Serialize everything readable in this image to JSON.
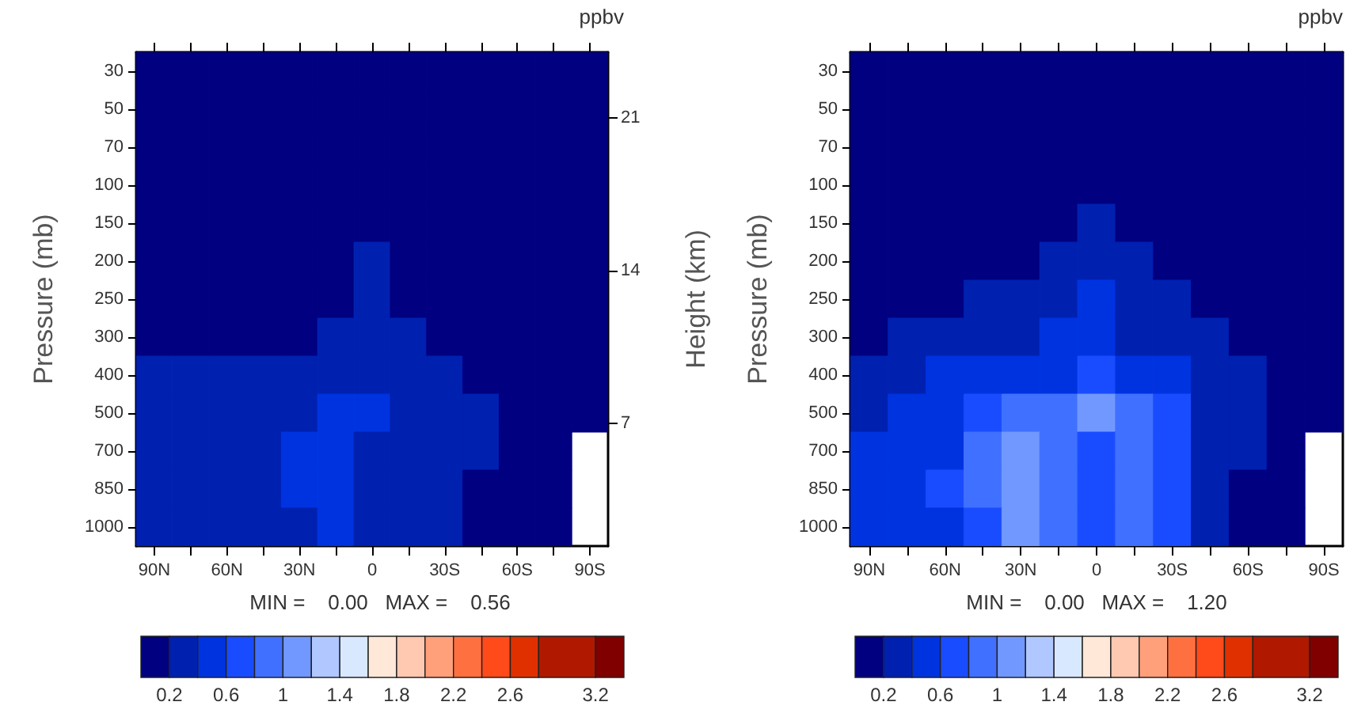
{
  "chart_data": [
    {
      "type": "heatmap",
      "ylabel": "Pressure (mb)",
      "y2label": "Height (km)",
      "clabel": "ppbv",
      "annotations": [
        "MIN =    0.00   MAX =    0.56"
      ],
      "categories": [
        "90N",
        null,
        "60N",
        null,
        "30N",
        null,
        "0",
        null,
        "30S",
        null,
        "60S",
        null,
        "90S"
      ],
      "y_categories": [
        "30",
        "50",
        "70",
        "100",
        "150",
        "200",
        "250",
        "300",
        "400",
        "500",
        "700",
        "850",
        "1000"
      ],
      "clim": [
        0,
        3.4
      ],
      "y2lim": [
        1.4,
        24
      ],
      "y2ticks": [
        7,
        14,
        21
      ],
      "colors": [
        "#000080",
        "#0020b0",
        "#0033e0",
        "#1a4cff",
        "#4070ff",
        "#7098ff",
        "#b0c8ff",
        "#d8e8ff",
        "#ffe8d8",
        "#ffc8b0",
        "#ffa07a",
        "#ff7040",
        "#ff4a1a",
        "#e03000",
        "#b01800",
        "#800000"
      ],
      "cticks": [
        0.2,
        {
          "value": 0.4,
          "label": null
        },
        0.6,
        {
          "value": 0.8,
          "label": null
        },
        1,
        {
          "value": 1.2,
          "label": null
        },
        1.4,
        {
          "value": 1.6,
          "label": null
        },
        1.8,
        {
          "value": 2,
          "label": null
        },
        2.2,
        {
          "value": 2.4,
          "label": null
        },
        2.6,
        {
          "value": 2.8,
          "label": null
        },
        3.2
      ],
      "cells": [
        [
          0.1,
          0.1,
          0.1,
          0.1,
          0.1,
          0.1,
          0.1,
          0.1,
          0.1,
          0.1,
          0.1,
          0.1,
          0.1
        ],
        [
          0.1,
          0.1,
          0.1,
          0.1,
          0.1,
          0.1,
          0.1,
          0.1,
          0.1,
          0.1,
          0.1,
          0.1,
          0.1
        ],
        [
          0.1,
          0.1,
          0.1,
          0.1,
          0.1,
          0.1,
          0.1,
          0.1,
          0.1,
          0.1,
          0.1,
          0.1,
          0.1
        ],
        [
          0.1,
          0.1,
          0.1,
          0.1,
          0.1,
          0.1,
          0.1,
          0.1,
          0.1,
          0.1,
          0.1,
          0.1,
          0.1
        ],
        [
          0.1,
          0.1,
          0.1,
          0.1,
          0.1,
          0.1,
          0.1,
          0.1,
          0.1,
          0.1,
          0.1,
          0.1,
          0.1
        ],
        [
          0.1,
          0.1,
          0.1,
          0.1,
          0.1,
          0.1,
          0.3,
          0.1,
          0.1,
          0.1,
          0.1,
          0.1,
          0.1
        ],
        [
          0.1,
          0.1,
          0.1,
          0.1,
          0.1,
          0.1,
          0.3,
          0.1,
          0.1,
          0.1,
          0.1,
          0.1,
          0.1
        ],
        [
          0.1,
          0.1,
          0.1,
          0.1,
          0.1,
          0.3,
          0.3,
          0.3,
          0.1,
          0.1,
          0.1,
          0.1,
          0.1
        ],
        [
          0.3,
          0.3,
          0.3,
          0.3,
          0.3,
          0.3,
          0.3,
          0.3,
          0.3,
          0.1,
          0.1,
          0.1,
          0.1
        ],
        [
          0.3,
          0.3,
          0.3,
          0.3,
          0.3,
          0.5,
          0.5,
          0.3,
          0.3,
          0.3,
          0.1,
          0.1,
          0.1
        ],
        [
          0.3,
          0.3,
          0.3,
          0.3,
          0.5,
          0.5,
          0.3,
          0.3,
          0.3,
          0.3,
          0.1,
          0.1,
          null
        ],
        [
          0.3,
          0.3,
          0.3,
          0.3,
          0.5,
          0.5,
          0.3,
          0.3,
          0.3,
          0.1,
          0.1,
          0.1,
          null
        ],
        [
          0.3,
          0.3,
          0.3,
          0.3,
          0.3,
          0.5,
          0.3,
          0.3,
          0.3,
          0.1,
          0.1,
          0.1,
          null
        ]
      ]
    },
    {
      "type": "heatmap",
      "ylabel": "Pressure (mb)",
      "clabel": "ppbv",
      "annotations": [
        "MIN =    0.00   MAX =    1.20"
      ],
      "categories": [
        "90N",
        null,
        "60N",
        null,
        "30N",
        null,
        "0",
        null,
        "30S",
        null,
        "60S",
        null,
        "90S"
      ],
      "y_categories": [
        "30",
        "50",
        "70",
        "100",
        "150",
        "200",
        "250",
        "300",
        "400",
        "500",
        "700",
        "850",
        "1000"
      ],
      "clim": [
        0,
        3.4
      ],
      "colors": [
        "#000080",
        "#0020b0",
        "#0033e0",
        "#1a4cff",
        "#4070ff",
        "#7098ff",
        "#b0c8ff",
        "#d8e8ff",
        "#ffe8d8",
        "#ffc8b0",
        "#ffa07a",
        "#ff7040",
        "#ff4a1a",
        "#e03000",
        "#b01800",
        "#800000"
      ],
      "cticks": [
        0.2,
        {
          "value": 0.4,
          "label": null
        },
        0.6,
        {
          "value": 0.8,
          "label": null
        },
        1,
        {
          "value": 1.2,
          "label": null
        },
        1.4,
        {
          "value": 1.6,
          "label": null
        },
        1.8,
        {
          "value": 2,
          "label": null
        },
        2.2,
        {
          "value": 2.4,
          "label": null
        },
        2.6,
        {
          "value": 2.8,
          "label": null
        },
        3.2
      ],
      "cells": [
        [
          0.1,
          0.1,
          0.1,
          0.1,
          0.1,
          0.1,
          0.1,
          0.1,
          0.1,
          0.1,
          0.1,
          0.1,
          0.1
        ],
        [
          0.1,
          0.1,
          0.1,
          0.1,
          0.1,
          0.1,
          0.1,
          0.1,
          0.1,
          0.1,
          0.1,
          0.1,
          0.1
        ],
        [
          0.1,
          0.1,
          0.1,
          0.1,
          0.1,
          0.1,
          0.1,
          0.1,
          0.1,
          0.1,
          0.1,
          0.1,
          0.1
        ],
        [
          0.1,
          0.1,
          0.1,
          0.1,
          0.1,
          0.1,
          0.1,
          0.1,
          0.1,
          0.1,
          0.1,
          0.1,
          0.1
        ],
        [
          0.1,
          0.1,
          0.1,
          0.1,
          0.1,
          0.1,
          0.3,
          0.1,
          0.1,
          0.1,
          0.1,
          0.1,
          0.1
        ],
        [
          0.1,
          0.1,
          0.1,
          0.1,
          0.1,
          0.3,
          0.3,
          0.3,
          0.1,
          0.1,
          0.1,
          0.1,
          0.1
        ],
        [
          0.1,
          0.1,
          0.1,
          0.3,
          0.3,
          0.3,
          0.5,
          0.3,
          0.3,
          0.1,
          0.1,
          0.1,
          0.1
        ],
        [
          0.1,
          0.3,
          0.3,
          0.3,
          0.3,
          0.5,
          0.5,
          0.3,
          0.3,
          0.3,
          0.1,
          0.1,
          0.1
        ],
        [
          0.3,
          0.3,
          0.5,
          0.5,
          0.5,
          0.5,
          0.7,
          0.5,
          0.5,
          0.3,
          0.3,
          0.1,
          0.1
        ],
        [
          0.3,
          0.5,
          0.5,
          0.7,
          0.9,
          0.9,
          1.1,
          0.9,
          0.7,
          0.3,
          0.3,
          0.1,
          0.1
        ],
        [
          0.5,
          0.5,
          0.5,
          0.9,
          1.1,
          0.9,
          0.7,
          0.9,
          0.7,
          0.3,
          0.3,
          0.1,
          null
        ],
        [
          0.5,
          0.5,
          0.7,
          0.9,
          1.1,
          0.9,
          0.7,
          0.9,
          0.7,
          0.3,
          0.1,
          0.1,
          null
        ],
        [
          0.5,
          0.5,
          0.5,
          0.7,
          1.1,
          0.9,
          0.7,
          0.9,
          0.7,
          0.3,
          0.1,
          0.1,
          null
        ]
      ]
    }
  ]
}
